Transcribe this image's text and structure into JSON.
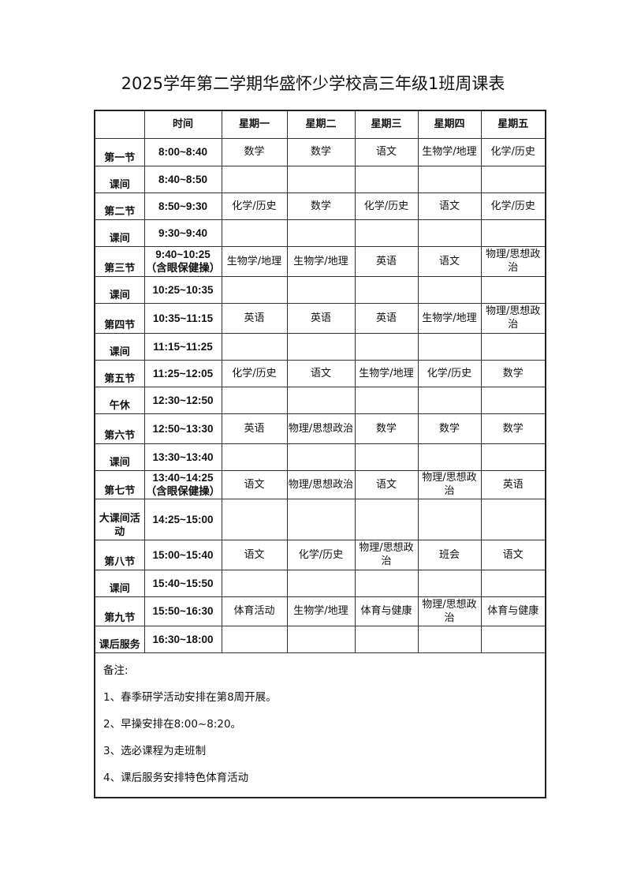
{
  "title": "2025学年第二学期华盛怀少学校高三年级1班周课表",
  "header": [
    "",
    "时间",
    "星期一",
    "星期二",
    "星期三",
    "星期四",
    "星期五"
  ],
  "rows": [
    {
      "label": "第一节",
      "time": "8:00~8:40",
      "cells": [
        "数学",
        "数学",
        "语文",
        "生物学/地理",
        "化学/历史"
      ]
    },
    {
      "label": "课间",
      "time": "8:40~8:50",
      "cells": [
        "",
        "",
        "",
        "",
        ""
      ]
    },
    {
      "label": "第二节",
      "time": "8:50~9:30",
      "cells": [
        "化学/历史",
        "数学",
        "化学/历史",
        "语文",
        "化学/历史"
      ]
    },
    {
      "label": "课间",
      "time": "9:30~9:40",
      "cells": [
        "",
        "",
        "",
        "",
        ""
      ]
    },
    {
      "label": "第三节",
      "time": "9:40~10:25\n（含眼保健操）",
      "cells": [
        "生物学/地理",
        "生物学/地理",
        "英语",
        "语文",
        "物理/思想政治"
      ]
    },
    {
      "label": "课间",
      "time": "10:25~10:35",
      "cells": [
        "",
        "",
        "",
        "",
        ""
      ]
    },
    {
      "label": "第四节",
      "time": "10:35~11:15",
      "cells": [
        "英语",
        "英语",
        "英语",
        "生物学/地理",
        "物理/思想政治"
      ]
    },
    {
      "label": "课间",
      "time": "11:15~11:25",
      "cells": [
        "",
        "",
        "",
        "",
        ""
      ]
    },
    {
      "label": "第五节",
      "time": "11:25~12:05",
      "cells": [
        "化学/历史",
        "语文",
        "生物学/地理",
        "化学/历史",
        "数学"
      ]
    },
    {
      "label": "午休",
      "time": "12:30~12:50",
      "cells": [
        "",
        "",
        "",
        "",
        ""
      ]
    },
    {
      "label": "第六节",
      "time": "12:50~13:30",
      "cells": [
        "英语",
        "物理/思想政治",
        "数学",
        "数学",
        "数学"
      ]
    },
    {
      "label": "课间",
      "time": "13:30~13:40",
      "cells": [
        "",
        "",
        "",
        "",
        ""
      ]
    },
    {
      "label": "第七节",
      "time": "13:40~14:25\n（含眼保健操）",
      "cells": [
        "语文",
        "物理/思想政治",
        "语文",
        "物理/思想政治",
        "英语"
      ]
    },
    {
      "label": "大课间活动",
      "time": "14:25~15:00",
      "cells": [
        "",
        "",
        "",
        "",
        ""
      ]
    },
    {
      "label": "第八节",
      "time": "15:00~15:40",
      "cells": [
        "语文",
        "化学/历史",
        "物理/思想政治",
        "班会",
        "语文"
      ]
    },
    {
      "label": "课间",
      "time": "15:40~15:50",
      "cells": [
        "",
        "",
        "",
        "",
        ""
      ]
    },
    {
      "label": "第九节",
      "time": "15:50~16:30",
      "cells": [
        "体育活动",
        "生物学/地理",
        "体育与健康",
        "物理/思想政治",
        "体育与健康"
      ]
    },
    {
      "label": "课后服务",
      "time": "16:30~18:00",
      "cells": [
        "",
        "",
        "",
        "",
        ""
      ]
    }
  ],
  "notes": {
    "heading": "备注:",
    "items": [
      "1、春季研学活动安排在第8周开展。",
      "2、早操安排在8:00~8:20。",
      "3、选必课程为走班制",
      "4、课后服务安排特色体育活动"
    ]
  }
}
